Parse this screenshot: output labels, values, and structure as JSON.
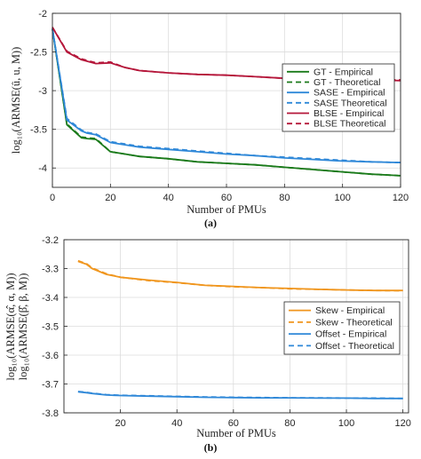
{
  "chart_data": [
    {
      "type": "line",
      "panel_caption": "(a)",
      "xlabel": "Number of PMUs",
      "ylabel": "log₁₀(ARMSE(û, u, M))",
      "xlim": [
        0,
        120
      ],
      "ylim": [
        -4.25,
        -2
      ],
      "xticks": [
        0,
        20,
        40,
        60,
        80,
        100,
        120
      ],
      "yticks": [
        -2,
        -2.5,
        -3,
        -3.5,
        -4
      ],
      "ytick_labels": [
        "-2",
        "-2.5",
        "-3",
        "-3.5",
        "-4"
      ],
      "grid": true,
      "legend_position": "right",
      "x": [
        0,
        5,
        10,
        12,
        15,
        20,
        25,
        30,
        40,
        50,
        60,
        70,
        80,
        90,
        100,
        110,
        120
      ],
      "series": [
        {
          "name": "GT - Empirical",
          "style": "solid",
          "color": "#1a7a1a",
          "values": [
            -2.2,
            -3.44,
            -3.61,
            -3.62,
            -3.63,
            -3.79,
            -3.82,
            -3.85,
            -3.88,
            -3.92,
            -3.94,
            -3.96,
            -3.99,
            -4.02,
            -4.05,
            -4.08,
            -4.1
          ]
        },
        {
          "name": "GT - Theoretical",
          "style": "dashed",
          "color": "#1a7a1a",
          "values": [
            -2.2,
            -3.43,
            -3.6,
            -3.61,
            -3.62,
            -3.79,
            -3.82,
            -3.85,
            -3.88,
            -3.92,
            -3.94,
            -3.96,
            -3.99,
            -4.02,
            -4.05,
            -4.08,
            -4.1
          ]
        },
        {
          "name": "SASE - Empirical",
          "style": "solid",
          "color": "#2f88d8",
          "values": [
            -2.2,
            -3.38,
            -3.52,
            -3.55,
            -3.57,
            -3.67,
            -3.7,
            -3.73,
            -3.76,
            -3.79,
            -3.82,
            -3.84,
            -3.87,
            -3.89,
            -3.91,
            -3.92,
            -3.93
          ]
        },
        {
          "name": "SASE Theoretical",
          "style": "dashed",
          "color": "#2f88d8",
          "values": [
            -2.2,
            -3.36,
            -3.51,
            -3.54,
            -3.56,
            -3.66,
            -3.69,
            -3.72,
            -3.75,
            -3.78,
            -3.81,
            -3.84,
            -3.86,
            -3.88,
            -3.9,
            -3.92,
            -3.93
          ]
        },
        {
          "name": "BLSE - Empirical",
          "style": "solid",
          "color": "#b5163a",
          "values": [
            -2.18,
            -2.5,
            -2.6,
            -2.62,
            -2.65,
            -2.64,
            -2.7,
            -2.74,
            -2.77,
            -2.79,
            -2.8,
            -2.82,
            -2.84,
            -2.85,
            -2.86,
            -2.86,
            -2.87
          ]
        },
        {
          "name": "BLSE Theoretical",
          "style": "dashed",
          "color": "#b5163a",
          "values": [
            -2.18,
            -2.49,
            -2.59,
            -2.61,
            -2.64,
            -2.63,
            -2.7,
            -2.74,
            -2.77,
            -2.79,
            -2.8,
            -2.82,
            -2.84,
            -2.85,
            -2.85,
            -2.86,
            -2.86
          ]
        }
      ]
    },
    {
      "type": "line",
      "panel_caption": "(b)",
      "xlabel": "Number of PMUs",
      "ylabel_lines": [
        "log₁₀(ARMSE(α̂, α, M))",
        "log₁₀(ARMSE(β̂, β, M))"
      ],
      "xlim": [
        0,
        122
      ],
      "ylim": [
        -3.8,
        -3.2
      ],
      "xticks": [
        20,
        40,
        60,
        80,
        100,
        120
      ],
      "yticks": [
        -3.2,
        -3.3,
        -3.4,
        -3.5,
        -3.6,
        -3.7,
        -3.8
      ],
      "ytick_labels": [
        "-3.2",
        "-3.3",
        "-3.4",
        "-3.5",
        "-3.6",
        "-3.7",
        "-3.8"
      ],
      "grid": true,
      "legend_position": "right",
      "x": [
        5,
        8,
        10,
        15,
        20,
        30,
        40,
        50,
        60,
        70,
        80,
        90,
        100,
        110,
        120
      ],
      "series": [
        {
          "name": "Skew - Empirical",
          "style": "solid",
          "color": "#f0961e",
          "values": [
            -3.275,
            -3.285,
            -3.3,
            -3.32,
            -3.33,
            -3.34,
            -3.348,
            -3.358,
            -3.362,
            -3.366,
            -3.369,
            -3.372,
            -3.374,
            -3.376,
            -3.376
          ]
        },
        {
          "name": "Skew - Theoretical",
          "style": "dashed",
          "color": "#f0961e",
          "values": [
            -3.273,
            -3.283,
            -3.298,
            -3.318,
            -3.33,
            -3.342,
            -3.349,
            -3.358,
            -3.363,
            -3.366,
            -3.37,
            -3.372,
            -3.374,
            -3.376,
            -3.377
          ]
        },
        {
          "name": "Offset - Empirical",
          "style": "solid",
          "color": "#2f88d8",
          "values": [
            -3.727,
            -3.73,
            -3.733,
            -3.738,
            -3.74,
            -3.742,
            -3.744,
            -3.746,
            -3.747,
            -3.748,
            -3.748,
            -3.749,
            -3.749,
            -3.75,
            -3.75
          ]
        },
        {
          "name": "Offset - Theoretical",
          "style": "dashed",
          "color": "#2f88d8",
          "values": [
            -3.726,
            -3.729,
            -3.732,
            -3.737,
            -3.739,
            -3.741,
            -3.743,
            -3.745,
            -3.746,
            -3.747,
            -3.748,
            -3.748,
            -3.749,
            -3.749,
            -3.75
          ]
        }
      ]
    }
  ]
}
